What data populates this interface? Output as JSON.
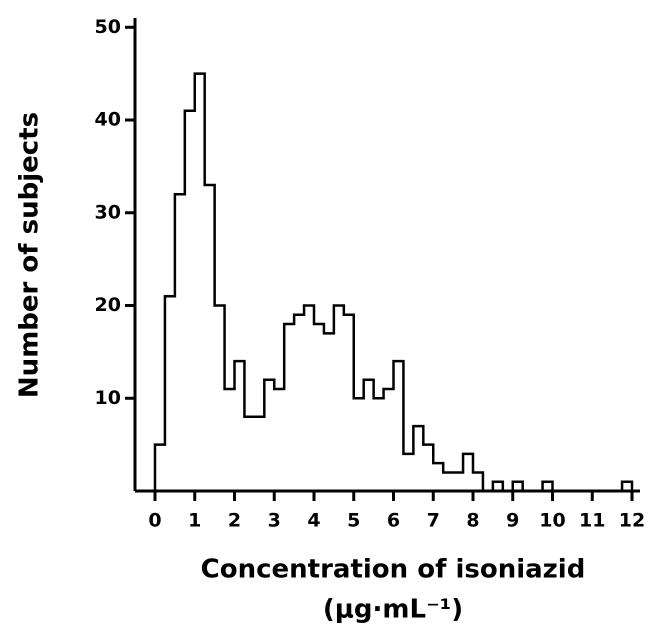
{
  "chart_data": {
    "type": "histogram",
    "xlabel": [
      "Concentration of isoniazid",
      "(μg·mL⁻¹)"
    ],
    "ylabel": "Number of subjects",
    "bins": [
      0,
      0.25,
      0.5,
      0.75,
      1,
      1.25,
      1.5,
      1.75,
      2,
      2.25,
      2.5,
      2.75,
      3,
      3.25,
      3.5,
      3.75,
      4,
      4.25,
      4.5,
      4.75,
      5,
      5.25,
      5.5,
      5.75,
      6,
      6.25,
      6.5,
      6.75,
      7,
      7.25,
      7.5,
      7.75,
      8,
      8.25,
      8.5,
      8.75,
      9,
      9.25,
      9.5,
      9.75,
      10,
      10.25,
      10.5,
      10.75,
      11,
      11.25,
      11.5,
      11.75,
      12
    ],
    "values": [
      5,
      21,
      32,
      41,
      45,
      33,
      20,
      11,
      14,
      8,
      8,
      12,
      11,
      18,
      19,
      20,
      18,
      17,
      20,
      19,
      10,
      12,
      10,
      11,
      14,
      4,
      7,
      5,
      3,
      2,
      2,
      4,
      2,
      0,
      1,
      0,
      1,
      0,
      0,
      1,
      0,
      0,
      0,
      0,
      0,
      0,
      0,
      1
    ],
    "color": "#000000",
    "xlim": [
      0,
      12
    ],
    "xticks": [
      0,
      1,
      2,
      3,
      4,
      5,
      6,
      7,
      8,
      9,
      10,
      11,
      12
    ],
    "ylim": [
      0,
      51
    ],
    "yticks": [
      10,
      20,
      30,
      40,
      50
    ]
  }
}
